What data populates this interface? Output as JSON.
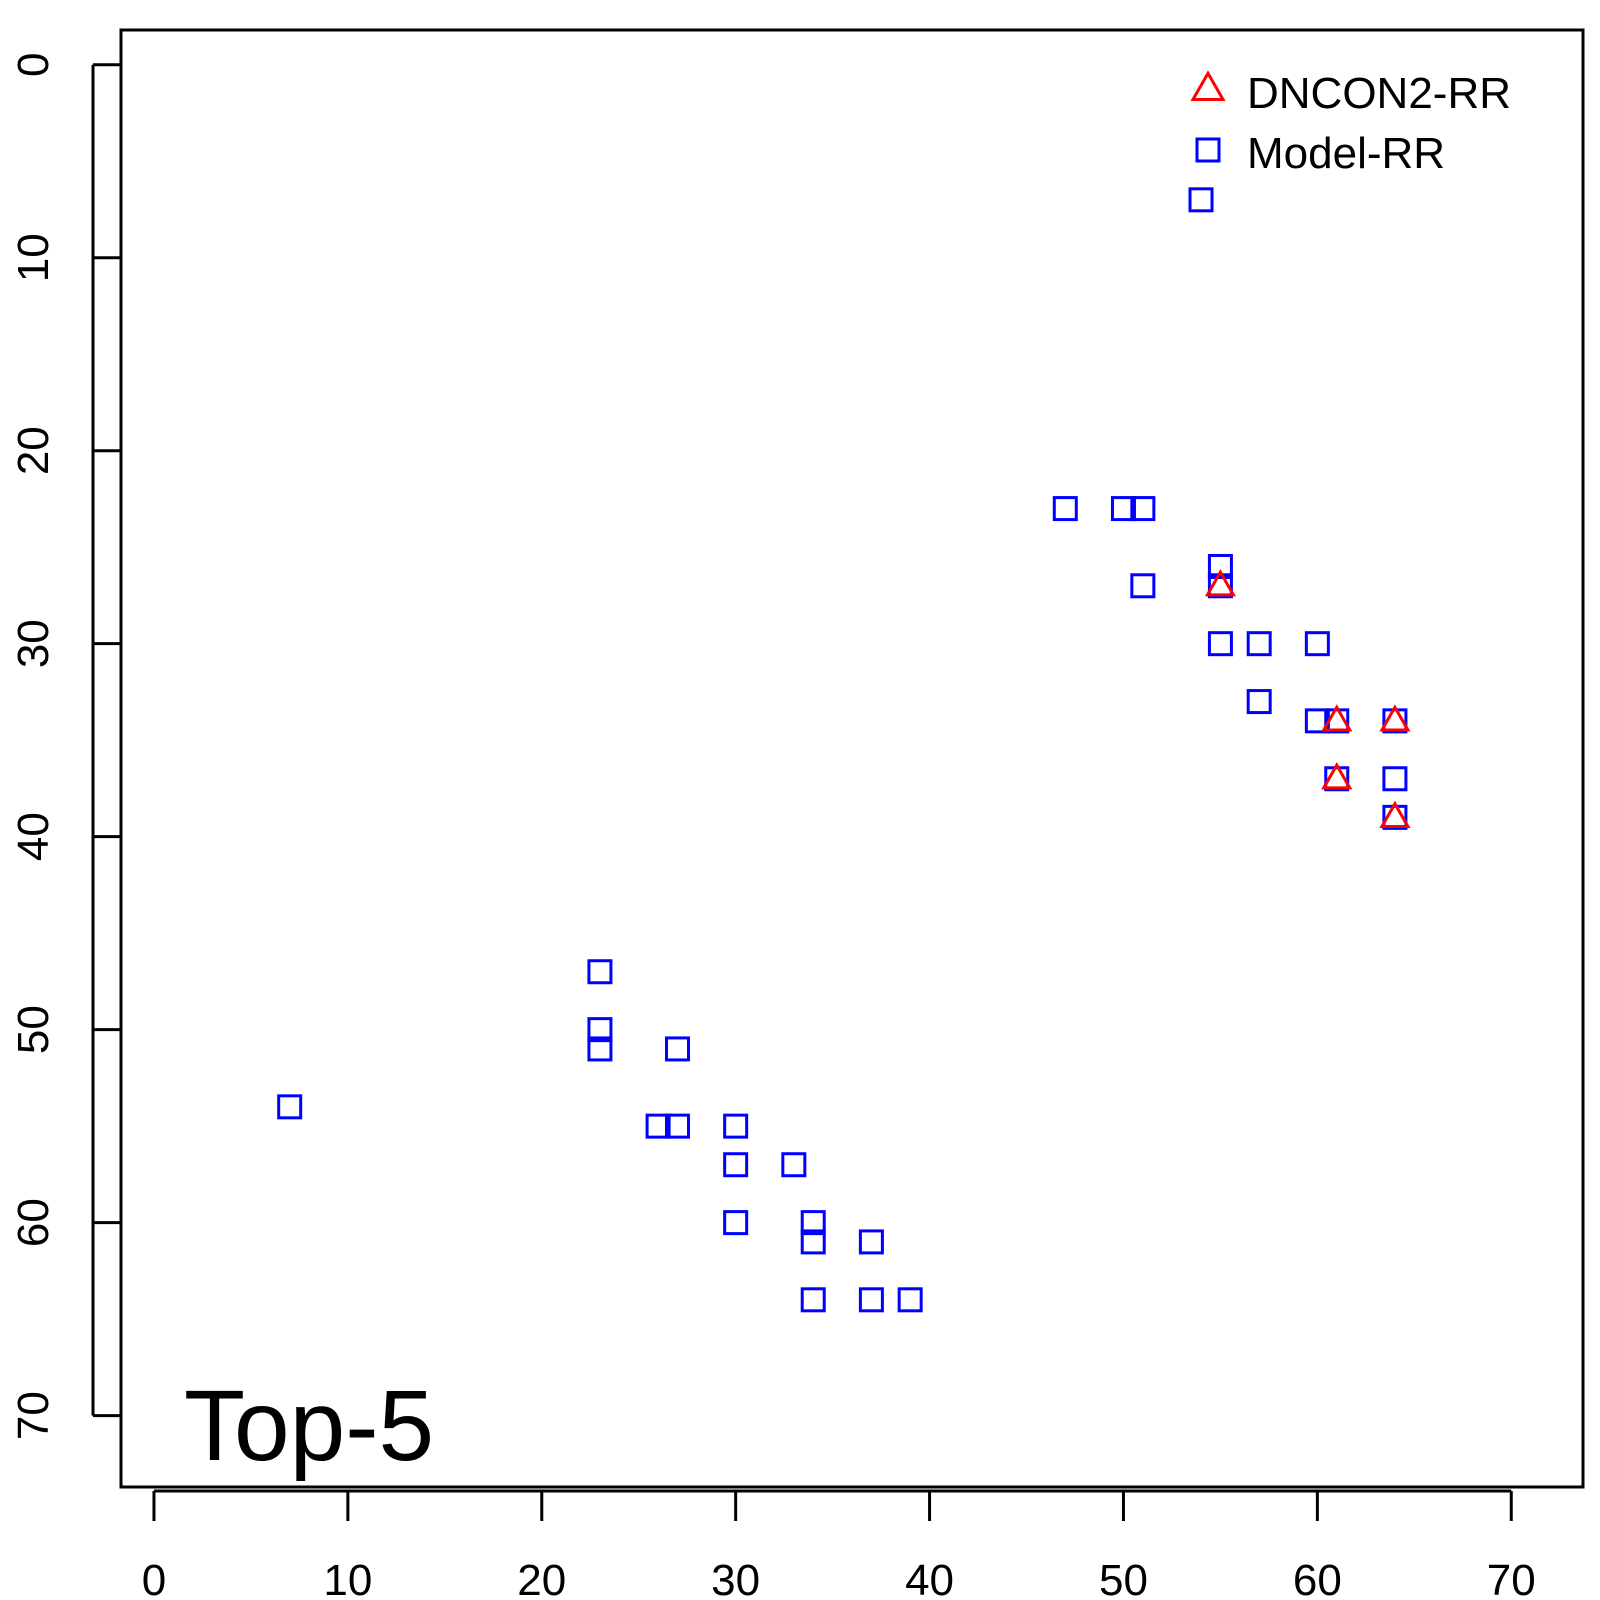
{
  "chart_data": {
    "type": "scatter",
    "title": "",
    "xlabel": "",
    "ylabel": "",
    "xlim": [
      -1.7,
      73.7
    ],
    "ylim": [
      -1.8,
      73.7
    ],
    "y_reversed": true,
    "x_ticks": [
      0,
      10,
      20,
      30,
      40,
      50,
      60,
      70
    ],
    "y_ticks": [
      0,
      10,
      20,
      30,
      40,
      50,
      60,
      70
    ],
    "grid": false,
    "legend_position": "top-right",
    "annotation": "Top-5",
    "series": [
      {
        "name": "Model-RR",
        "marker": "square",
        "color": "#0000ff",
        "points": [
          [
            54,
            7
          ],
          [
            47,
            23
          ],
          [
            50,
            23
          ],
          [
            51,
            23
          ],
          [
            55,
            26
          ],
          [
            55,
            27
          ],
          [
            51,
            27
          ],
          [
            55,
            30
          ],
          [
            57,
            30
          ],
          [
            60,
            30
          ],
          [
            57,
            33
          ],
          [
            60,
            34
          ],
          [
            61,
            34
          ],
          [
            64,
            34
          ],
          [
            61,
            37
          ],
          [
            64,
            37
          ],
          [
            64,
            39
          ],
          [
            23,
            47
          ],
          [
            23,
            50
          ],
          [
            23,
            51
          ],
          [
            27,
            51
          ],
          [
            7,
            54
          ],
          [
            26,
            55
          ],
          [
            27,
            55
          ],
          [
            30,
            55
          ],
          [
            30,
            57
          ],
          [
            33,
            57
          ],
          [
            30,
            60
          ],
          [
            34,
            60
          ],
          [
            34,
            61
          ],
          [
            37,
            61
          ],
          [
            34,
            64
          ],
          [
            37,
            64
          ],
          [
            39,
            64
          ]
        ]
      },
      {
        "name": "DNCON2-RR",
        "marker": "triangle",
        "color": "#ff0000",
        "points": [
          [
            55,
            27
          ],
          [
            61,
            34
          ],
          [
            64,
            34
          ],
          [
            61,
            37
          ],
          [
            64,
            39
          ]
        ]
      }
    ],
    "legend": [
      {
        "label": "DNCON2-RR",
        "marker": "triangle",
        "color": "#ff0000"
      },
      {
        "label": "Model-RR",
        "marker": "square",
        "color": "#0000ff"
      }
    ]
  }
}
